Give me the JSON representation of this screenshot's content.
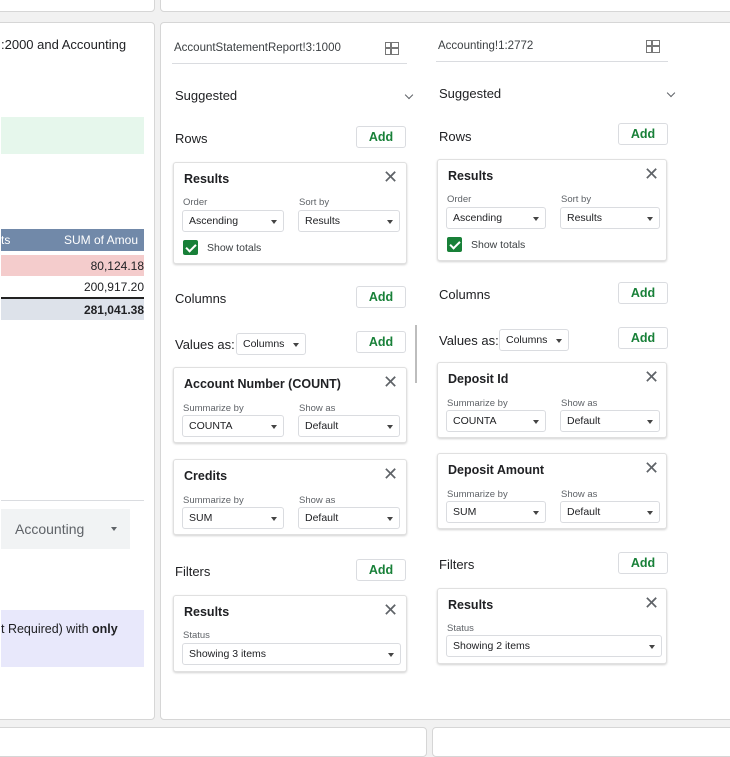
{
  "left_panel": {
    "top_text": ":2000 and Accounting",
    "table_header": {
      "col1": "ts",
      "col2": "SUM of Amou"
    },
    "rows": [
      {
        "value": "80,124.18"
      },
      {
        "value": "200,917.20"
      }
    ],
    "total": "281,041.38",
    "sheet_tab": "Accounting",
    "note_prefix": "t Required) with ",
    "note_bold": "only"
  },
  "editor_a": {
    "range": "AccountStatementReport!3:1000",
    "suggested": "Suggested",
    "rows_label": "Rows",
    "add": "Add",
    "rows_card": {
      "title": "Results",
      "order_label": "Order",
      "order_value": "Ascending",
      "sort_label": "Sort by",
      "sort_value": "Results",
      "show_totals": "Show totals"
    },
    "columns_label": "Columns",
    "values_as_label": "Values as:",
    "values_as_value": "Columns",
    "value_cards": [
      {
        "title": "Account Number (COUNT)",
        "summarize_label": "Summarize by",
        "summarize_value": "COUNTA",
        "show_label": "Show as",
        "show_value": "Default"
      },
      {
        "title": "Credits",
        "summarize_label": "Summarize by",
        "summarize_value": "SUM",
        "show_label": "Show as",
        "show_value": "Default"
      }
    ],
    "filters_label": "Filters",
    "filter_card": {
      "title": "Results",
      "status_label": "Status",
      "status_value": "Showing 3 items"
    }
  },
  "editor_b": {
    "range": "Accounting!1:2772",
    "suggested": "Suggested",
    "rows_label": "Rows",
    "add": "Add",
    "rows_card": {
      "title": "Results",
      "order_label": "Order",
      "order_value": "Ascending",
      "sort_label": "Sort by",
      "sort_value": "Results",
      "show_totals": "Show totals"
    },
    "columns_label": "Columns",
    "values_as_label": "Values as:",
    "values_as_value": "Columns",
    "value_cards": [
      {
        "title": "Deposit Id",
        "summarize_label": "Summarize by",
        "summarize_value": "COUNTA",
        "show_label": "Show as",
        "show_value": "Default"
      },
      {
        "title": "Deposit Amount",
        "summarize_label": "Summarize by",
        "summarize_value": "SUM",
        "show_label": "Show as",
        "show_value": "Default"
      }
    ],
    "filters_label": "Filters",
    "filter_card": {
      "title": "Results",
      "status_label": "Status",
      "status_value": "Showing 2 items"
    }
  },
  "colors": {
    "accent_green": "#188038",
    "header_blue": "#7189a9",
    "row_pink": "#f4cccc",
    "total_grey": "#dde2ea",
    "mint": "#e6f7ec",
    "lavender": "#e8e8fb"
  }
}
